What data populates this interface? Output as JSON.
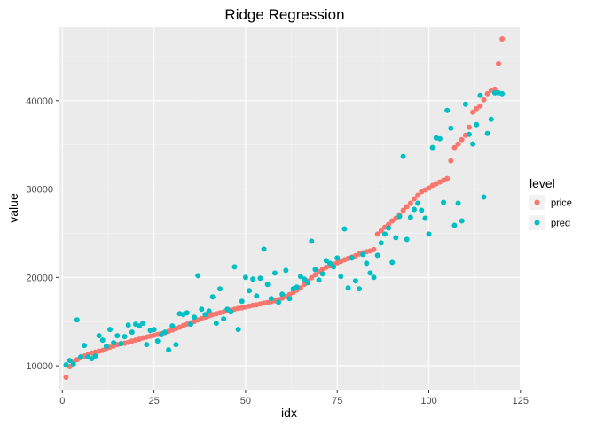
{
  "chart_data": {
    "type": "scatter",
    "title": "Ridge Regression",
    "xlabel": "idx",
    "ylabel": "value",
    "xlim": [
      -0.8,
      124.8
    ],
    "ylim": [
      7300,
      48400
    ],
    "xticks": [
      0,
      25,
      50,
      75,
      100,
      125
    ],
    "yticks": [
      10000,
      20000,
      30000,
      40000
    ],
    "grid": true,
    "legend": {
      "title": "level",
      "position": "right"
    },
    "series": [
      {
        "name": "price",
        "color": "#F8766D",
        "points": [
          [
            1,
            8700
          ],
          [
            2,
            9900
          ],
          [
            3,
            10400
          ],
          [
            4,
            10700
          ],
          [
            5,
            10900
          ],
          [
            6,
            11100
          ],
          [
            7,
            11300
          ],
          [
            8,
            11450
          ],
          [
            9,
            11550
          ],
          [
            10,
            11650
          ],
          [
            11,
            11750
          ],
          [
            12,
            11950
          ],
          [
            13,
            12100
          ],
          [
            14,
            12250
          ],
          [
            15,
            12400
          ],
          [
            16,
            12500
          ],
          [
            17,
            12550
          ],
          [
            18,
            12650
          ],
          [
            19,
            12800
          ],
          [
            20,
            12900
          ],
          [
            21,
            13000
          ],
          [
            22,
            13150
          ],
          [
            23,
            13250
          ],
          [
            24,
            13350
          ],
          [
            25,
            13450
          ],
          [
            26,
            13550
          ],
          [
            27,
            13650
          ],
          [
            28,
            13750
          ],
          [
            29,
            13900
          ],
          [
            30,
            14050
          ],
          [
            31,
            14200
          ],
          [
            32,
            14350
          ],
          [
            33,
            14550
          ],
          [
            34,
            14700
          ],
          [
            35,
            14850
          ],
          [
            36,
            15000
          ],
          [
            37,
            15200
          ],
          [
            38,
            15350
          ],
          [
            39,
            15500
          ],
          [
            40,
            15650
          ],
          [
            41,
            15800
          ],
          [
            42,
            15900
          ],
          [
            43,
            16000
          ],
          [
            44,
            16100
          ],
          [
            45,
            16200
          ],
          [
            46,
            16300
          ],
          [
            47,
            16400
          ],
          [
            48,
            16500
          ],
          [
            49,
            16550
          ],
          [
            50,
            16650
          ],
          [
            51,
            16750
          ],
          [
            52,
            16850
          ],
          [
            53,
            16900
          ],
          [
            54,
            17000
          ],
          [
            55,
            17100
          ],
          [
            56,
            17150
          ],
          [
            57,
            17250
          ],
          [
            58,
            17350
          ],
          [
            59,
            17500
          ],
          [
            60,
            17650
          ],
          [
            61,
            17850
          ],
          [
            62,
            18050
          ],
          [
            63,
            18300
          ],
          [
            64,
            18550
          ],
          [
            65,
            18800
          ],
          [
            66,
            19200
          ],
          [
            67,
            19600
          ],
          [
            68,
            19950
          ],
          [
            69,
            20300
          ],
          [
            70,
            20650
          ],
          [
            71,
            20950
          ],
          [
            72,
            21150
          ],
          [
            73,
            21300
          ],
          [
            74,
            21500
          ],
          [
            75,
            21650
          ],
          [
            76,
            21800
          ],
          [
            77,
            22000
          ],
          [
            78,
            22150
          ],
          [
            79,
            22300
          ],
          [
            80,
            22450
          ],
          [
            81,
            22650
          ],
          [
            82,
            22800
          ],
          [
            83,
            22900
          ],
          [
            84,
            23000
          ],
          [
            85,
            23150
          ],
          [
            86,
            24900
          ],
          [
            87,
            25300
          ],
          [
            88,
            25700
          ],
          [
            89,
            26000
          ],
          [
            90,
            26400
          ],
          [
            91,
            26700
          ],
          [
            92,
            27100
          ],
          [
            93,
            27600
          ],
          [
            94,
            28000
          ],
          [
            95,
            28400
          ],
          [
            96,
            28900
          ],
          [
            97,
            29300
          ],
          [
            98,
            29700
          ],
          [
            99,
            29900
          ],
          [
            100,
            30100
          ],
          [
            101,
            30400
          ],
          [
            102,
            30600
          ],
          [
            103,
            30800
          ],
          [
            104,
            31000
          ],
          [
            105,
            31200
          ],
          [
            106,
            33200
          ],
          [
            107,
            34700
          ],
          [
            108,
            35100
          ],
          [
            109,
            35600
          ],
          [
            110,
            36100
          ],
          [
            111,
            37000
          ],
          [
            112,
            38700
          ],
          [
            113,
            39100
          ],
          [
            114,
            39400
          ],
          [
            115,
            40100
          ],
          [
            116,
            40800
          ],
          [
            117,
            41200
          ],
          [
            118,
            41300
          ],
          [
            119,
            44200
          ],
          [
            120,
            47000
          ]
        ]
      },
      {
        "name": "pred",
        "color": "#00BFC4",
        "points": [
          [
            1,
            10100
          ],
          [
            2,
            10600
          ],
          [
            3,
            10200
          ],
          [
            4,
            15200
          ],
          [
            5,
            11000
          ],
          [
            6,
            12300
          ],
          [
            7,
            11000
          ],
          [
            8,
            10800
          ],
          [
            9,
            11100
          ],
          [
            10,
            13400
          ],
          [
            11,
            12900
          ],
          [
            12,
            12200
          ],
          [
            13,
            14100
          ],
          [
            14,
            12600
          ],
          [
            15,
            13400
          ],
          [
            16,
            12500
          ],
          [
            17,
            13300
          ],
          [
            18,
            14600
          ],
          [
            19,
            13800
          ],
          [
            20,
            14700
          ],
          [
            21,
            14500
          ],
          [
            22,
            14800
          ],
          [
            23,
            12400
          ],
          [
            24,
            14000
          ],
          [
            25,
            14100
          ],
          [
            26,
            12800
          ],
          [
            27,
            13500
          ],
          [
            28,
            13800
          ],
          [
            29,
            11800
          ],
          [
            30,
            14500
          ],
          [
            31,
            12400
          ],
          [
            32,
            15900
          ],
          [
            33,
            15800
          ],
          [
            34,
            16000
          ],
          [
            35,
            14700
          ],
          [
            36,
            15500
          ],
          [
            37,
            20200
          ],
          [
            38,
            16400
          ],
          [
            39,
            15800
          ],
          [
            40,
            16200
          ],
          [
            41,
            17800
          ],
          [
            42,
            14800
          ],
          [
            43,
            18700
          ],
          [
            44,
            15300
          ],
          [
            45,
            16400
          ],
          [
            46,
            16100
          ],
          [
            47,
            21200
          ],
          [
            48,
            14100
          ],
          [
            49,
            17300
          ],
          [
            50,
            20000
          ],
          [
            51,
            18500
          ],
          [
            52,
            19800
          ],
          [
            53,
            17900
          ],
          [
            54,
            19900
          ],
          [
            55,
            23200
          ],
          [
            56,
            19200
          ],
          [
            57,
            17600
          ],
          [
            58,
            20500
          ],
          [
            59,
            17200
          ],
          [
            60,
            18100
          ],
          [
            61,
            20800
          ],
          [
            62,
            17600
          ],
          [
            63,
            18700
          ],
          [
            64,
            18900
          ],
          [
            65,
            20100
          ],
          [
            66,
            19800
          ],
          [
            67,
            19400
          ],
          [
            68,
            24100
          ],
          [
            69,
            20900
          ],
          [
            70,
            19700
          ],
          [
            71,
            20400
          ],
          [
            72,
            21900
          ],
          [
            73,
            21600
          ],
          [
            74,
            21200
          ],
          [
            75,
            22200
          ],
          [
            76,
            20100
          ],
          [
            77,
            25500
          ],
          [
            78,
            18800
          ],
          [
            79,
            22200
          ],
          [
            80,
            19600
          ],
          [
            81,
            18700
          ],
          [
            82,
            22600
          ],
          [
            83,
            21600
          ],
          [
            84,
            20500
          ],
          [
            85,
            20000
          ],
          [
            86,
            22500
          ],
          [
            87,
            23900
          ],
          [
            88,
            24900
          ],
          [
            89,
            25600
          ],
          [
            90,
            21700
          ],
          [
            91,
            24500
          ],
          [
            92,
            26900
          ],
          [
            93,
            33700
          ],
          [
            94,
            24300
          ],
          [
            95,
            26800
          ],
          [
            96,
            27700
          ],
          [
            97,
            28400
          ],
          [
            98,
            27600
          ],
          [
            99,
            26700
          ],
          [
            100,
            24900
          ],
          [
            101,
            34700
          ],
          [
            102,
            35800
          ],
          [
            103,
            35700
          ],
          [
            104,
            28500
          ],
          [
            105,
            38900
          ],
          [
            106,
            36900
          ],
          [
            107,
            25900
          ],
          [
            108,
            28400
          ],
          [
            109,
            26400
          ],
          [
            110,
            39600
          ],
          [
            111,
            36200
          ],
          [
            112,
            35100
          ],
          [
            113,
            37300
          ],
          [
            114,
            40600
          ],
          [
            115,
            29100
          ],
          [
            116,
            36300
          ],
          [
            117,
            37900
          ],
          [
            118,
            40900
          ],
          [
            119,
            40900
          ],
          [
            120,
            40800
          ]
        ]
      }
    ]
  }
}
